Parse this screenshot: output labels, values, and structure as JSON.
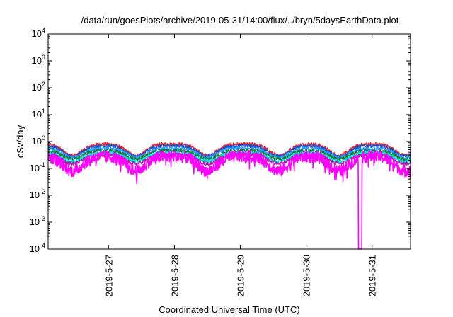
{
  "chart_data": {
    "type": "line",
    "title": "/data/run/goesPlots/archive/2019-05-31/14:00/flux/../bryn/5daysEarthData.plot",
    "xlabel": "Coordinated Universal Time (UTC)",
    "ylabel": "cSv/day",
    "y_scale": "log",
    "ylim": [
      0.0001,
      10000
    ],
    "y_ticks": [
      {
        "value": 0.0001,
        "base": "10",
        "exp": "-4"
      },
      {
        "value": 0.001,
        "base": "10",
        "exp": "-3"
      },
      {
        "value": 0.01,
        "base": "10",
        "exp": "-2"
      },
      {
        "value": 0.1,
        "base": "10",
        "exp": "-1"
      },
      {
        "value": 1,
        "base": "10",
        "exp": "0"
      },
      {
        "value": 10,
        "base": "10",
        "exp": "1"
      },
      {
        "value": 100,
        "base": "10",
        "exp": "2"
      },
      {
        "value": 1000,
        "base": "10",
        "exp": "3"
      },
      {
        "value": 10000,
        "base": "10",
        "exp": "4"
      }
    ],
    "xlim": [
      "2019-05-26T02:00",
      "2019-05-31T14:00"
    ],
    "x_ticks": [
      "2019-5-27",
      "2019-5-28",
      "2019-5-29",
      "2019-5-30",
      "2019-5-31"
    ],
    "grid": false,
    "legend": "none",
    "daily_minima": [
      "2019-05-26T11:00",
      "2019-05-27T10:00",
      "2019-05-28T12:00",
      "2019-05-29T14:00",
      "2019-05-30T12:00",
      "2019-05-31T12:00"
    ],
    "dropout": {
      "start": "2019-05-30T19:00",
      "end": "2019-05-30T20:15",
      "series": "magenta",
      "value": 0.0001
    },
    "series": [
      {
        "color": "#ff2222",
        "peak": 0.8,
        "trough": 0.3
      },
      {
        "color": "#1f4fc9",
        "peak": 0.7,
        "trough": 0.28
      },
      {
        "color": "#2aa0ff",
        "peak": 0.55,
        "trough": 0.25
      },
      {
        "color": "#1a7a2a",
        "peak": 0.45,
        "trough": 0.22
      },
      {
        "color": "#00e5e5",
        "peak": 0.38,
        "trough": 0.18
      },
      {
        "color": "#aa22aa",
        "peak": 0.32,
        "trough": 0.15
      },
      {
        "color": "#ff00ff",
        "peak": 0.28,
        "trough": 0.08
      }
    ]
  }
}
